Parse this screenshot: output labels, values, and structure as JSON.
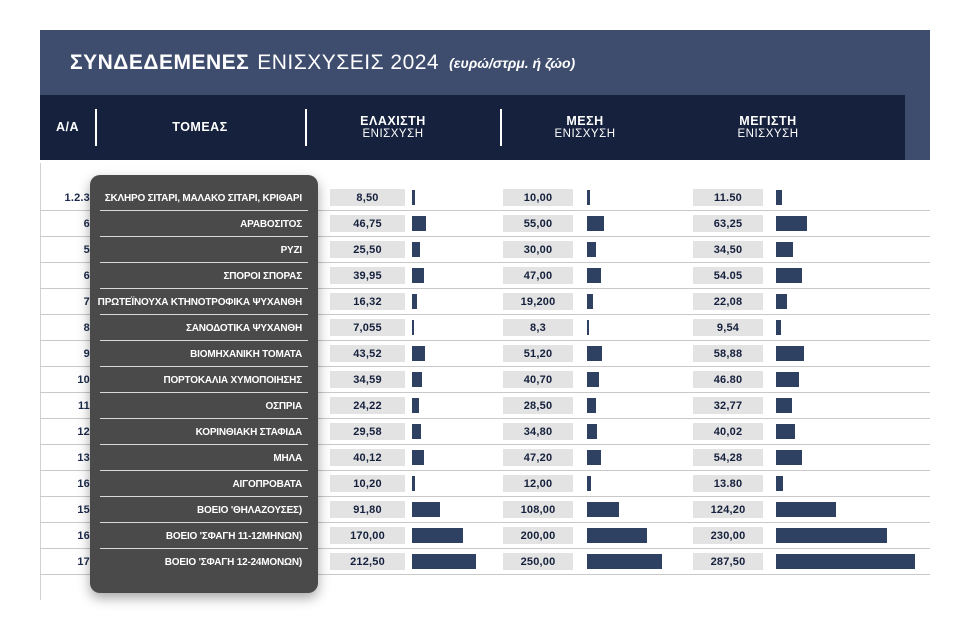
{
  "title": {
    "brand": "ΣΥΝΔΕΔΕΜΕΝΕΣ",
    "rest": "ΕΝΙΣΧΥΣΕΙΣ 2024",
    "note": "(ευρώ/στρμ. ή ζώο)"
  },
  "columns": {
    "id": "Α/Α",
    "sector": "ΤΟΜΕΑΣ",
    "min_line1": "ΕΛΑΧΙΣΤΗ",
    "min_line2": "ΕΝΙΣΧΥΣΗ",
    "avg_line1": "ΜΕΣΗ",
    "avg_line2": "ΕΝΙΣΧΥΣΗ",
    "max_line1": "ΜΕΓΙΣΤΗ",
    "max_line2": "ΕΝΙΣΧΥΣΗ"
  },
  "colors": {
    "title_band": "#3e4d6e",
    "header_band": "#16213e",
    "bar": "#2e4163",
    "sector_panel": "#4a4a4a",
    "value_box": "#e3e3e3",
    "row_line": "#c9c9c9",
    "id_text": "#1b2a4a"
  },
  "rows": [
    {
      "id": "1.2.3",
      "sector": "ΣΚΛΗΡΟ ΣΙΤΑΡΙ, ΜΑΛΑΚΟ ΣΙΤΑΡΙ, ΚΡΙΘΑΡΙ",
      "min": "8,50",
      "avg": "10,00",
      "max": "11.50"
    },
    {
      "id": "6",
      "sector": "ΑΡΑΒΟΣΙΤΟΣ",
      "min": "46,75",
      "avg": "55,00",
      "max": "63,25"
    },
    {
      "id": "5",
      "sector": "ΡΥΖΙ",
      "min": "25,50",
      "avg": "30,00",
      "max": "34,50"
    },
    {
      "id": "6",
      "sector": "ΣΠΟΡΟΙ ΣΠΟΡΑΣ",
      "min": "39,95",
      "avg": "47,00",
      "max": "54.05"
    },
    {
      "id": "7",
      "sector": "ΠΡΩΤΕΪΝΟΥΧΑ ΚΤΗΝΟΤΡΟΦΙΚΑ ΨΥΧΑΝΘΗ",
      "min": "16,32",
      "avg": "19,200",
      "max": "22,08"
    },
    {
      "id": "8",
      "sector": "ΣΑΝΟΔΟΤΙΚΑ ΨΥΧΑΝΘΗ",
      "min": "7,055",
      "avg": "8,3",
      "max": "9,54"
    },
    {
      "id": "9",
      "sector": "ΒΙΟΜΗΧΑΝΙΚΗ ΤΟΜΑΤΑ",
      "min": "43,52",
      "avg": "51,20",
      "max": "58,88"
    },
    {
      "id": "10",
      "sector": "ΠΟΡΤΟΚΑΛΙΑ ΧΥΜΟΠΟΙΗΣΗΣ",
      "min": "34,59",
      "avg": "40,70",
      "max": "46.80"
    },
    {
      "id": "11",
      "sector": "ΟΣΠΡΙΑ",
      "min": "24,22",
      "avg": "28,50",
      "max": "32,77"
    },
    {
      "id": "12",
      "sector": "ΚΟΡΙΝΘΙΑΚΗ ΣΤΑΦΙΔΑ",
      "min": "29,58",
      "avg": "34,80",
      "max": "40,02"
    },
    {
      "id": "13",
      "sector": "ΜΗΛΑ",
      "min": "40,12",
      "avg": "47,20",
      "max": "54,28"
    },
    {
      "id": "16",
      "sector": "ΑΙΓΟΠΡΟΒΑΤΑ",
      "min": "10,20",
      "avg": "12,00",
      "max": "13.80"
    },
    {
      "id": "15",
      "sector": "ΒΟΕΙΟ 'ΘΗΛΑΖΟΥΣΕΣ)",
      "min": "91,80",
      "avg": "108,00",
      "max": "124,20"
    },
    {
      "id": "16",
      "sector": "ΒΟΕΙΟ 'ΣΦΑΓΗ 11-12ΜΗΝΩΝ)",
      "min": "170,00",
      "avg": "200,00",
      "max": "230,00"
    },
    {
      "id": "17",
      "sector": "ΒΟΕΙΟ 'ΣΦΑΓΗ 12-24ΜΟΝΩΝ)",
      "min": "212,50",
      "avg": "250,00",
      "max": "287,50"
    }
  ],
  "chart_data": {
    "type": "bar",
    "title": "ΣΥΝΔΕΔΕΜΕΝΕΣ ΕΝΙΣΧΥΣΕΙΣ 2024 (ευρώ/στρμ. ή ζώο)",
    "categories": [
      "ΣΚΛΗΡΟ ΣΙΤΑΡΙ, ΜΑΛΑΚΟ ΣΙΤΑΡΙ, ΚΡΙΘΑΡΙ",
      "ΑΡΑΒΟΣΙΤΟΣ",
      "ΡΥΖΙ",
      "ΣΠΟΡΟΙ ΣΠΟΡΑΣ",
      "ΠΡΩΤΕΪΝΟΥΧΑ ΚΤΗΝΟΤΡΟΦΙΚΑ ΨΥΧΑΝΘΗ",
      "ΣΑΝΟΔΟΤΙΚΑ ΨΥΧΑΝΘΗ",
      "ΒΙΟΜΗΧΑΝΙΚΗ ΤΟΜΑΤΑ",
      "ΠΟΡΤΟΚΑΛΙΑ ΧΥΜΟΠΟΙΗΣΗΣ",
      "ΟΣΠΡΙΑ",
      "ΚΟΡΙΝΘΙΑΚΗ ΣΤΑΦΙΔΑ",
      "ΜΗΛΑ",
      "ΑΙΓΟΠΡΟΒΑΤΑ",
      "ΒΟΕΙΟ 'ΘΗΛΑΖΟΥΣΕΣ)",
      "ΒΟΕΙΟ 'ΣΦΑΓΗ 11-12ΜΗΝΩΝ)",
      "ΒΟΕΙΟ 'ΣΦΑΓΗ 12-24ΜΟΝΩΝ)"
    ],
    "row_ids": [
      "1.2.3",
      "6",
      "5",
      "6",
      "7",
      "8",
      "9",
      "10",
      "11",
      "12",
      "13",
      "16",
      "15",
      "16",
      "17"
    ],
    "series": [
      {
        "name": "ΕΛΑΧΙΣΤΗ ΕΝΙΣΧΥΣΗ",
        "values": [
          8.5,
          46.75,
          25.5,
          39.95,
          16.32,
          7.055,
          43.52,
          34.59,
          24.22,
          29.58,
          40.12,
          10.2,
          91.8,
          170.0,
          212.5
        ]
      },
      {
        "name": "ΜΕΣΗ ΕΝΙΣΧΥΣΗ",
        "values": [
          10.0,
          55.0,
          30.0,
          47.0,
          19.2,
          8.3,
          51.2,
          40.7,
          28.5,
          34.8,
          47.2,
          12.0,
          108.0,
          200.0,
          250.0
        ]
      },
      {
        "name": "ΜΕΓΙΣΤΗ ΕΝΙΣΧΥΣΗ",
        "values": [
          11.5,
          63.25,
          34.5,
          54.05,
          22.08,
          9.54,
          58.88,
          46.8,
          32.77,
          40.02,
          54.28,
          13.8,
          124.2,
          230.0,
          287.5
        ]
      }
    ],
    "legend_position": "none",
    "grid": false,
    "orientation": "horizontal"
  }
}
